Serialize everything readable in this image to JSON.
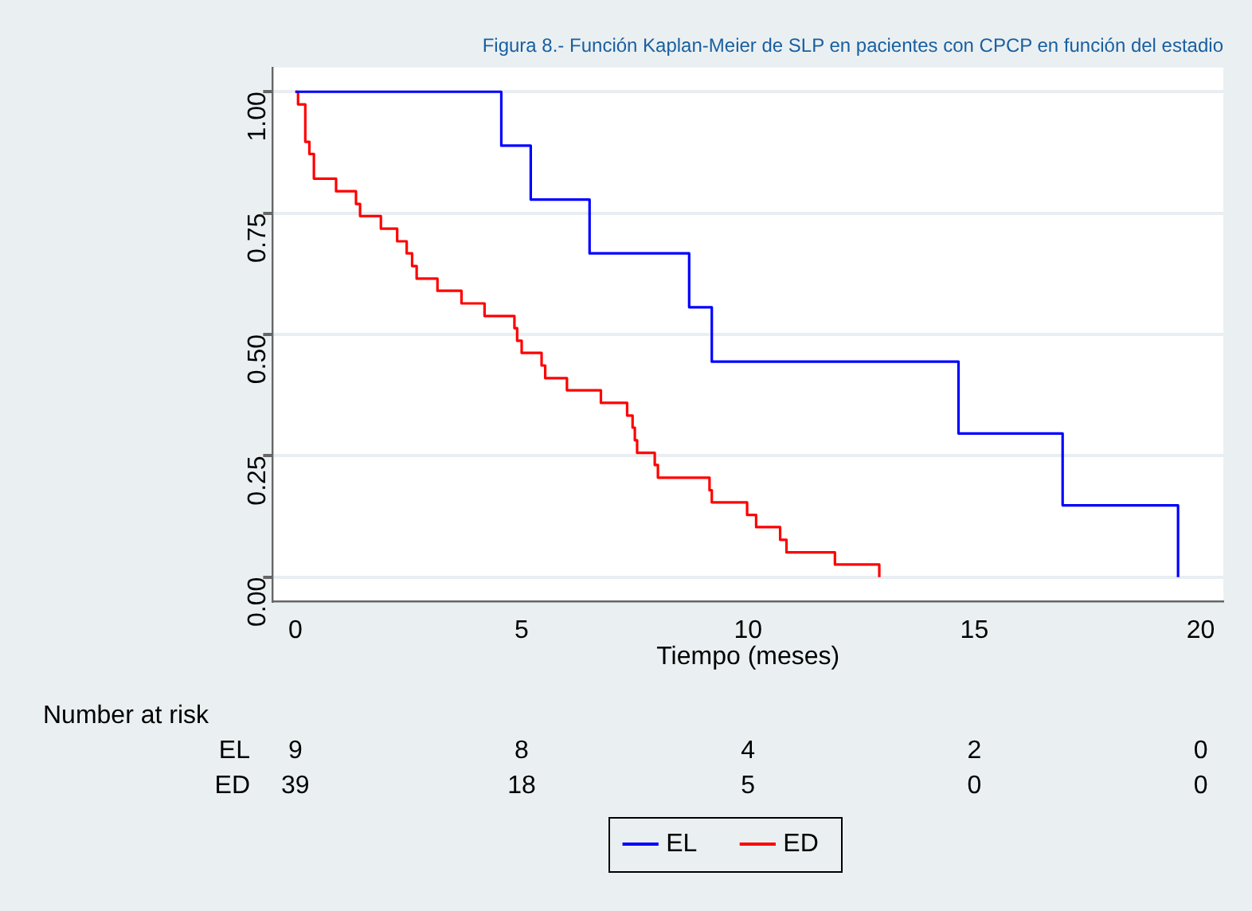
{
  "chart_data": {
    "type": "step",
    "title": "Figura 8.- Función Kaplan-Meier de SLP en pacientes con CPCP en función del estadio",
    "xlabel": "Tiempo (meses)",
    "xlim": [
      -0.5,
      20.5
    ],
    "xticks": [
      0,
      5,
      10,
      15,
      20
    ],
    "ylim": [
      -0.05,
      1.05
    ],
    "yticks": [
      {
        "value": 0,
        "label": "0.00"
      },
      {
        "value": 0.25,
        "label": "0.25"
      },
      {
        "value": 0.5,
        "label": "0.50"
      },
      {
        "value": 0.75,
        "label": "0.75"
      },
      {
        "value": 1,
        "label": "1.00"
      }
    ],
    "grid": "y",
    "legend": "bottom",
    "line_style": "solid",
    "marker": "none",
    "series": [
      {
        "name": "EL",
        "color": "#0000ff",
        "x": [
          0,
          4.55,
          5.2,
          6.5,
          8.7,
          9.2,
          14.65,
          16.95,
          19.5
        ],
        "values": [
          1,
          0.889,
          0.778,
          0.667,
          0.556,
          0.444,
          0.296,
          0.148,
          0
        ]
      },
      {
        "name": "ED",
        "color": "#ff0000",
        "x": [
          0,
          0.06,
          0.22,
          0.31,
          0.41,
          0.9,
          1.34,
          1.43,
          1.89,
          2.25,
          2.46,
          2.58,
          2.68,
          3.14,
          3.67,
          4.18,
          4.84,
          4.9,
          5.0,
          5.44,
          5.52,
          6.0,
          6.75,
          7.33,
          7.45,
          7.5,
          7.55,
          7.94,
          8.01,
          9.15,
          9.2,
          9.98,
          10.18,
          10.71,
          10.85,
          11.92,
          12.9
        ],
        "values": [
          1,
          0.974,
          0.897,
          0.872,
          0.821,
          0.795,
          0.769,
          0.744,
          0.718,
          0.692,
          0.667,
          0.641,
          0.615,
          0.59,
          0.564,
          0.538,
          0.513,
          0.487,
          0.462,
          0.436,
          0.41,
          0.385,
          0.359,
          0.333,
          0.308,
          0.282,
          0.256,
          0.231,
          0.205,
          0.179,
          0.154,
          0.128,
          0.103,
          0.077,
          0.051,
          0.026,
          0
        ]
      }
    ],
    "annotations": [
      "Number at risk",
      "EL",
      "9",
      "8",
      "4",
      "2",
      "0",
      "ED",
      "39",
      "18",
      "5",
      "0",
      "0"
    ]
  }
}
